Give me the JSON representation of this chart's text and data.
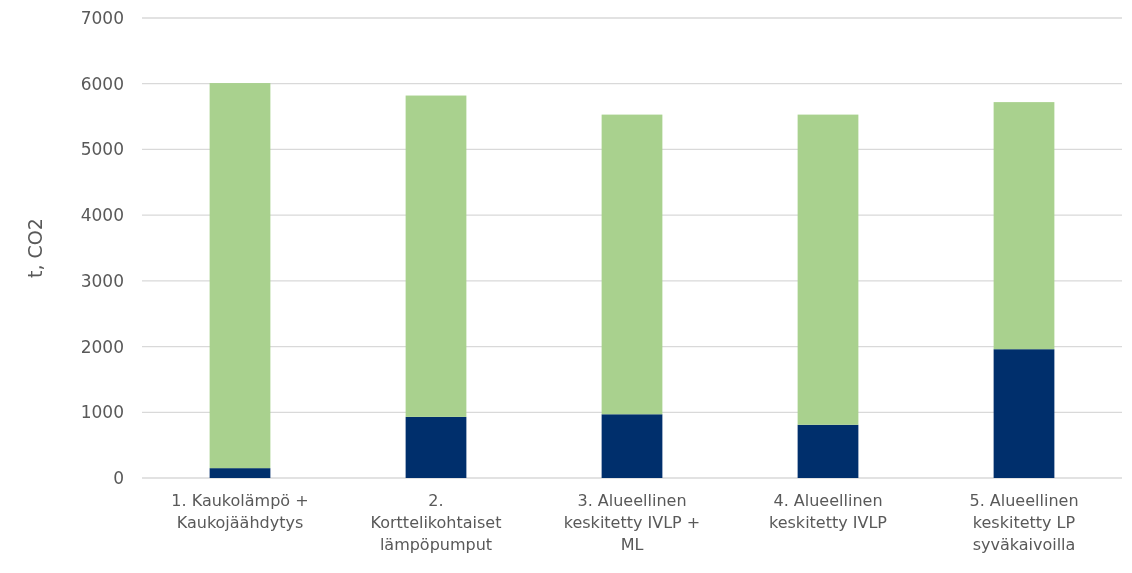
{
  "chart_data": {
    "type": "bar",
    "ylabel": "t, CO2",
    "stacked": true,
    "grid": "y",
    "categories": [
      "1. Kaukolämpö + Kaukojäähdytys",
      "2. Korttelikohtaiset lämpöpumput",
      "3. Alueellinen keskitetty IVLP + ML",
      "4. Alueellinen keskitetty IVLP",
      "5. Alueellinen keskitetty LP syväkaivoilla"
    ],
    "series": [
      {
        "color": "#002f6c",
        "values": [
          150,
          930,
          970,
          810,
          1960
        ]
      },
      {
        "color": "#a9d18e",
        "values": [
          5860,
          4890,
          4560,
          4720,
          3760
        ]
      }
    ],
    "ylim": [
      0,
      7000
    ],
    "yticks": [
      0,
      1000,
      2000,
      3000,
      4000,
      5000,
      6000,
      7000
    ]
  }
}
